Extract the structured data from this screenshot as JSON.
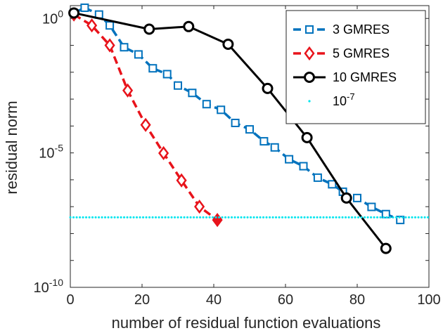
{
  "chart_data": {
    "type": "line",
    "title": "",
    "xlabel": "number of residual function evaluations",
    "ylabel": "residual norm",
    "xlim": [
      0,
      100
    ],
    "ylim": [
      1e-10,
      3
    ],
    "yscale": "log",
    "x_ticks": [
      {
        "value": 0,
        "label": "0"
      },
      {
        "value": 20,
        "label": "20"
      },
      {
        "value": 40,
        "label": "40"
      },
      {
        "value": 60,
        "label": "60"
      },
      {
        "value": 80,
        "label": "80"
      },
      {
        "value": 100,
        "label": "100"
      }
    ],
    "y_ticks": [
      {
        "value": 1,
        "base": "10",
        "exp": "0"
      },
      {
        "value": 1e-05,
        "base": "10",
        "exp": "-5"
      },
      {
        "value": 1e-10,
        "base": "10",
        "exp": "-10"
      }
    ],
    "legend_position": "top-right",
    "series": [
      {
        "name": "3 GMRES",
        "legend_text": "3 GMRES",
        "color": "#0072BD",
        "marker": "square",
        "line": "dashed",
        "x": [
          1,
          4,
          8,
          11,
          15,
          19,
          23,
          27,
          30,
          34,
          38,
          42,
          46,
          50,
          54,
          57,
          61,
          65,
          69,
          73,
          76,
          80,
          84,
          88,
          92
        ],
        "y": [
          1.6,
          2.5,
          1.4,
          0.55,
          0.085,
          0.046,
          0.014,
          0.0085,
          0.0032,
          0.0017,
          0.00065,
          0.0004,
          0.00013,
          7.5e-05,
          2.7e-05,
          1.6e-05,
          5.8e-06,
          3.2e-06,
          1.2e-06,
          6.8e-07,
          3.6e-07,
          2.1e-07,
          9.8e-08,
          5.3e-08,
          3.2e-08
        ]
      },
      {
        "name": "5 GMRES",
        "legend_text": "5 GMRES",
        "color": "#E8131B",
        "marker": "diamond",
        "line": "dashed",
        "x": [
          1,
          6,
          11,
          16,
          21,
          26,
          31,
          36,
          41
        ],
        "y": [
          1.4,
          0.55,
          0.1,
          0.0021,
          0.00011,
          9.8e-06,
          9.5e-07,
          1e-07,
          3.2e-08
        ],
        "fill_last_marker": true
      },
      {
        "name": "10 GMRES",
        "legend_text": "10 GMRES",
        "color": "#000000",
        "marker": "circle",
        "line": "solid",
        "x": [
          1,
          22,
          33,
          44,
          55,
          66,
          77,
          88
        ],
        "y": [
          1.6,
          0.4,
          0.5,
          0.11,
          0.0025,
          3.7e-05,
          2.1e-07,
          2.8e-09
        ]
      },
      {
        "name": "10^-7",
        "legend_text": "10",
        "legend_exp": "-7",
        "color": "#00E5EE",
        "marker": "dot",
        "line": "none",
        "threshold": 4e-08
      }
    ]
  }
}
